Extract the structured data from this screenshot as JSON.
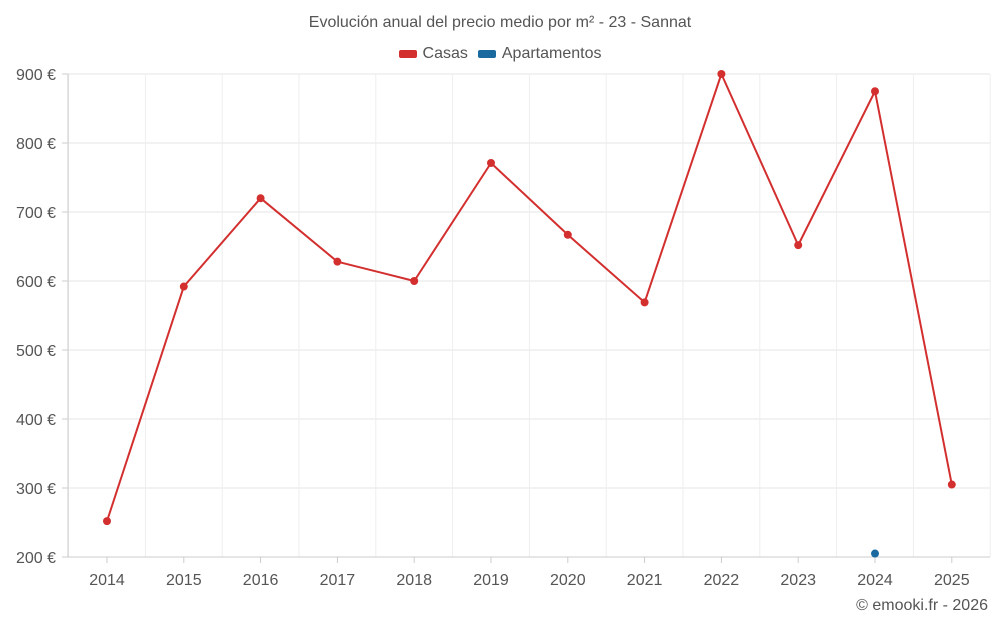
{
  "chart_data": {
    "type": "line",
    "title": "Evolución anual del precio medio por m² - 23 - Sannat",
    "categories": [
      "2014",
      "2015",
      "2016",
      "2017",
      "2018",
      "2019",
      "2020",
      "2021",
      "2022",
      "2023",
      "2024",
      "2025"
    ],
    "series": [
      {
        "name": "Casas",
        "color": "#d32f2f",
        "values": [
          252,
          592,
          720,
          628,
          600,
          771,
          667,
          569,
          900,
          652,
          875,
          305
        ]
      },
      {
        "name": "Apartamentos",
        "color": "#1a6aa0",
        "values": [
          null,
          null,
          null,
          null,
          null,
          null,
          null,
          null,
          null,
          null,
          205,
          null
        ]
      }
    ],
    "ylim": [
      200,
      900
    ],
    "yticks": [
      200,
      300,
      400,
      500,
      600,
      700,
      800,
      900
    ],
    "y_tick_labels": [
      "200 €",
      "300 €",
      "400 €",
      "500 €",
      "600 €",
      "700 €",
      "800 €",
      "900 €"
    ],
    "xlabel": "",
    "ylabel": "",
    "grid": true,
    "legend_position": "top-center"
  },
  "credit": "© emooki.fr - 2026"
}
